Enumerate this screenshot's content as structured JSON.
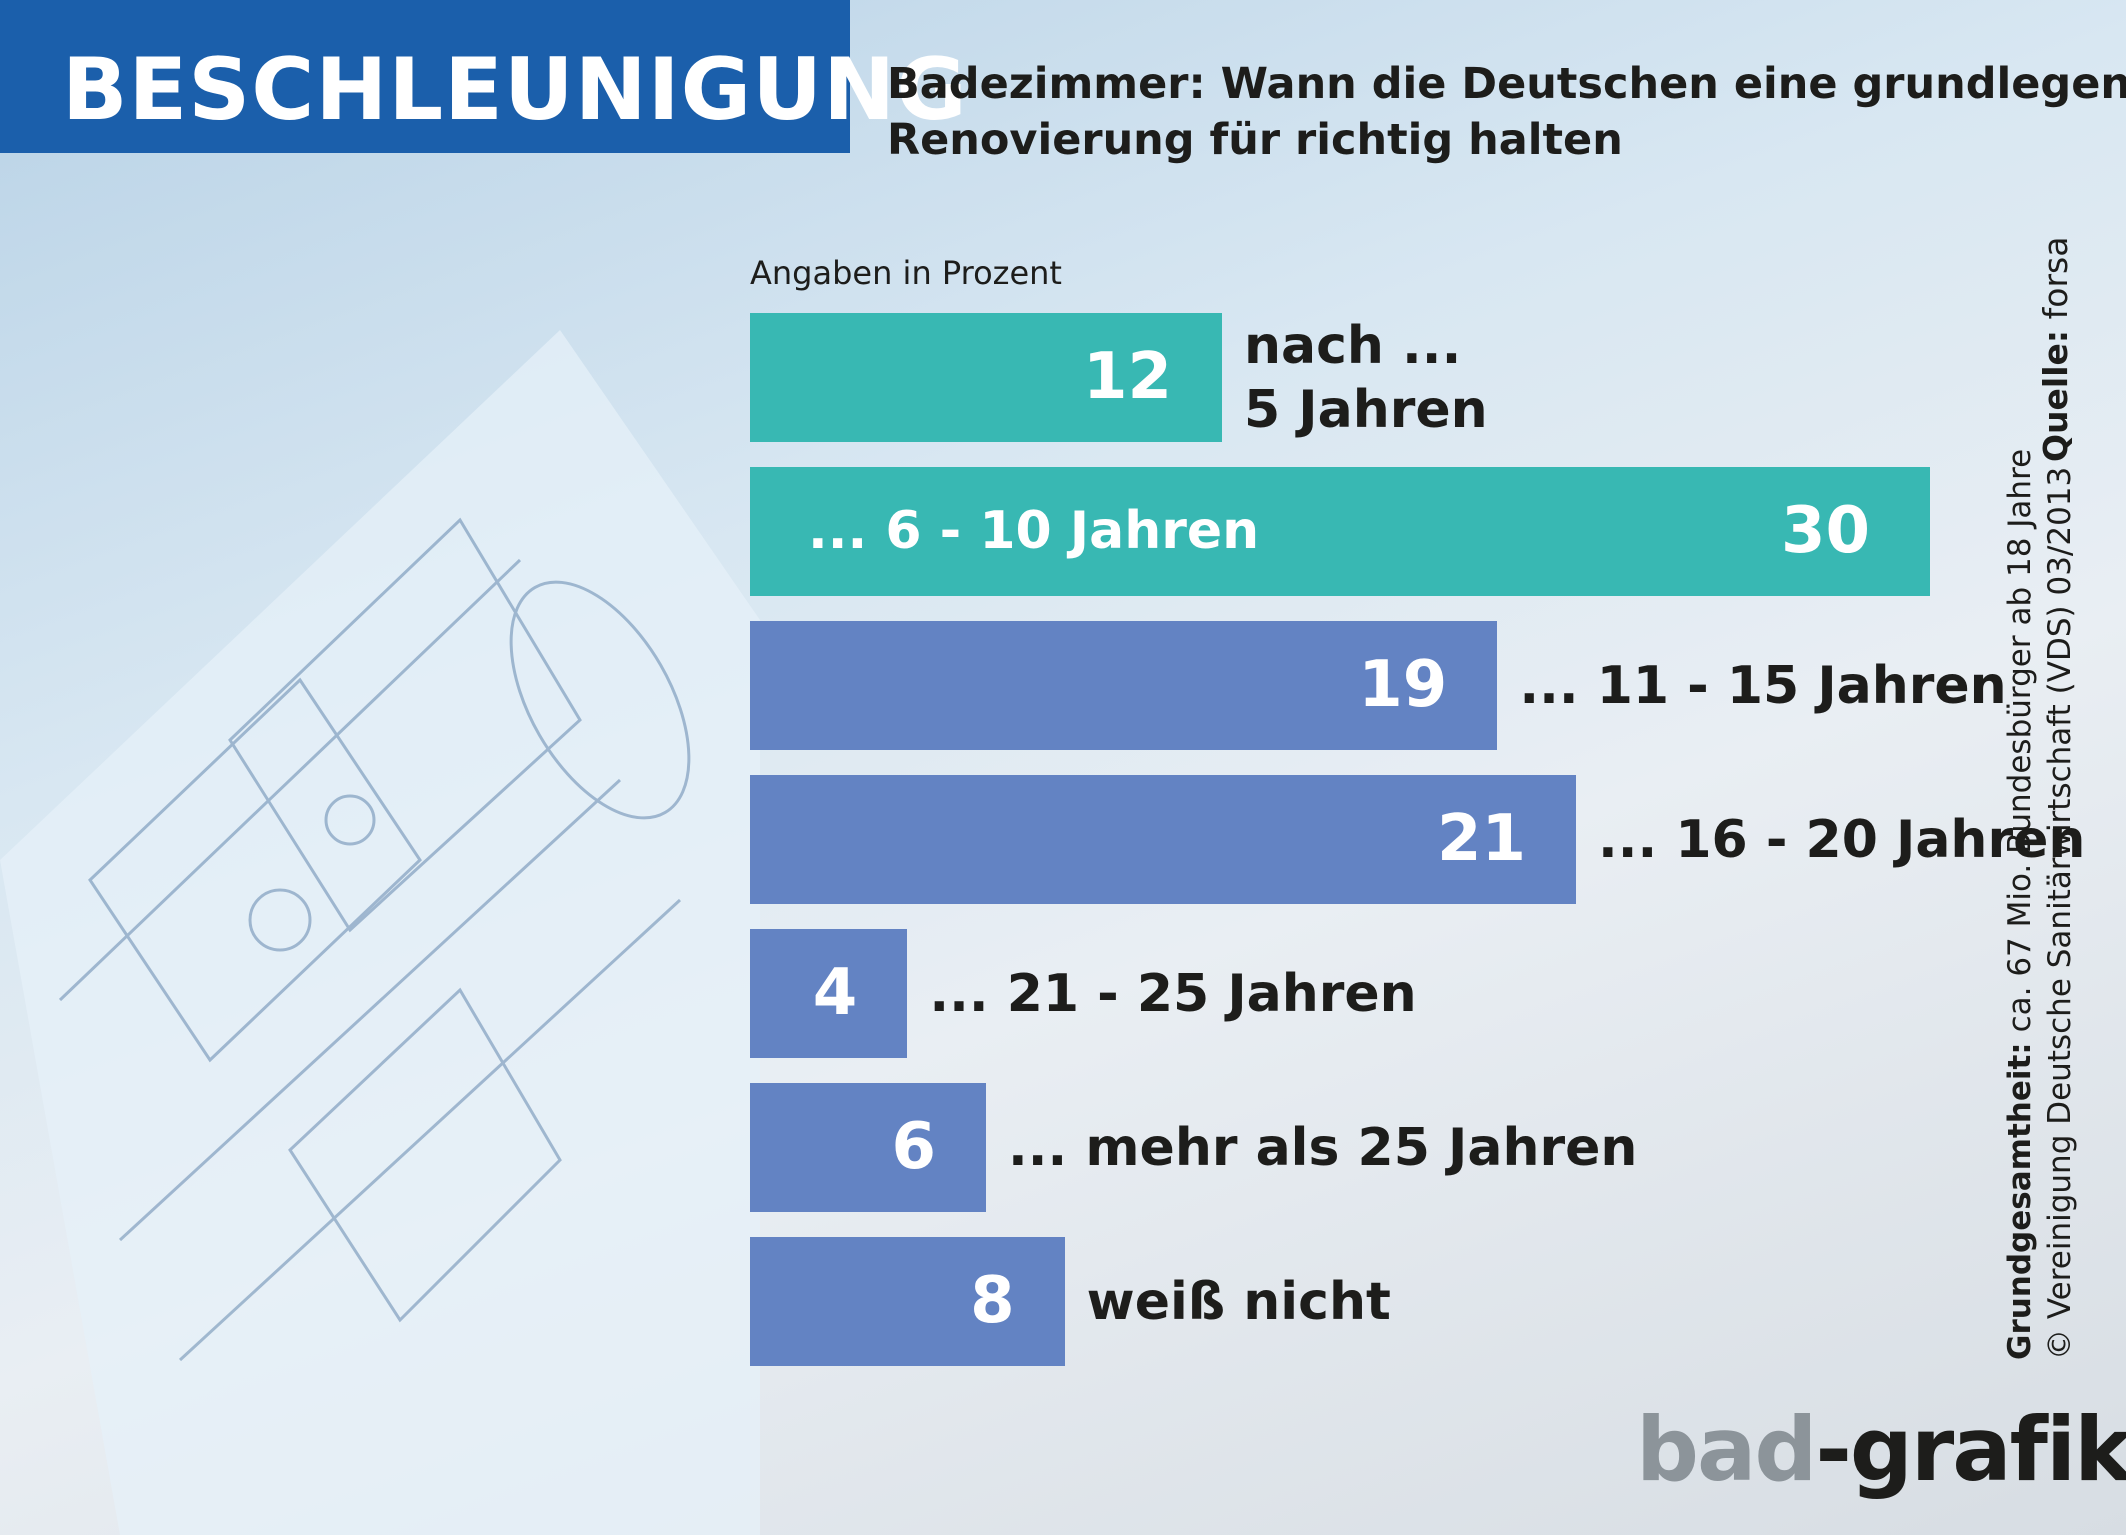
{
  "header": {
    "badge": "BESCHLEUNIGUNG",
    "subtitle_line1": "Badezimmer: Wann die Deutschen eine grundlegende",
    "subtitle_line2": "Renovierung für richtig halten"
  },
  "chart_data": {
    "type": "bar",
    "orientation": "horizontal",
    "unit_note": "Angaben in Prozent",
    "categories": [
      "nach ... 5 Jahren",
      "... 6 - 10 Jahren",
      "... 11 - 15 Jahren",
      "... 16 - 20 Jahren",
      "... 21 - 25 Jahren",
      "... mehr als 25 Jahren",
      "weiß nicht"
    ],
    "label_lines": [
      [
        "nach ...",
        "5 Jahren"
      ],
      [
        "... 6 - 10 Jahren"
      ],
      [
        "... 11 - 15 Jahren"
      ],
      [
        "... 16 - 20 Jahren"
      ],
      [
        "... 21 - 25 Jahren"
      ],
      [
        "... mehr als 25 Jahren"
      ],
      [
        "weiß nicht"
      ]
    ],
    "values": [
      12,
      30,
      19,
      21,
      4,
      6,
      8
    ],
    "bar_colors": [
      "#38b8b3",
      "#38b8b3",
      "#6383c3",
      "#6383c3",
      "#6383c3",
      "#6383c3",
      "#6383c3"
    ],
    "xlim": [
      0,
      30
    ]
  },
  "footnote": {
    "base_label": "Grundgesamtheit:",
    "base_text": "ca. 67 Mio. Bundesbürger ab 18 Jahre",
    "copyright": "© Vereinigung Deutsche Sanitärwirtschaft (VDS)  03/2013",
    "source_label": "Quelle:",
    "source_text": "forsa"
  },
  "logo": {
    "part1": "bad",
    "part2": "-grafik"
  }
}
